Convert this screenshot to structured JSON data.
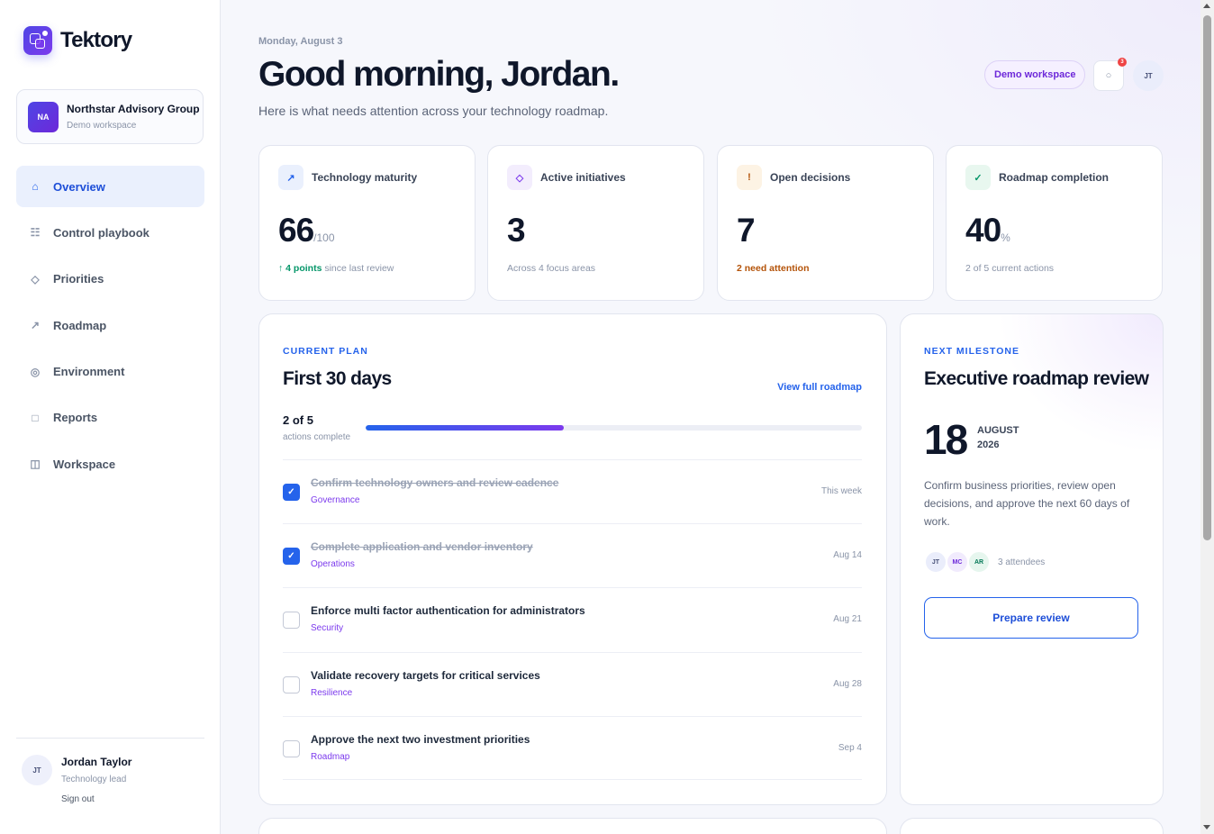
{
  "app": {
    "name": "Tektory"
  },
  "org": {
    "initials": "NA",
    "name": "Northstar Advisory Group",
    "subtitle": "Demo workspace"
  },
  "nav": [
    {
      "label": "Overview",
      "icon": "⌂",
      "icon_name": "home-icon",
      "active": true
    },
    {
      "label": "Control playbook",
      "icon": "☷",
      "icon_name": "list-icon",
      "active": false
    },
    {
      "label": "Priorities",
      "icon": "◇",
      "icon_name": "diamond-icon",
      "active": false
    },
    {
      "label": "Roadmap",
      "icon": "↗",
      "icon_name": "trend-arrow-icon",
      "active": false
    },
    {
      "label": "Environment",
      "icon": "◎",
      "icon_name": "target-icon",
      "active": false
    },
    {
      "label": "Reports",
      "icon": "□",
      "icon_name": "document-icon",
      "active": false
    },
    {
      "label": "Workspace",
      "icon": "◫",
      "icon_name": "layout-icon",
      "active": false
    }
  ],
  "user": {
    "initials": "JT",
    "name": "Jordan Taylor",
    "role": "Technology lead",
    "signout": "Sign out"
  },
  "header": {
    "date": "Monday, August 3",
    "greeting": "Good morning, Jordan.",
    "subtitle": "Here is what needs attention across your technology roadmap.",
    "workspace_pill": "Demo workspace",
    "notification_count": "3",
    "avatar_initials": "JT"
  },
  "stats": [
    {
      "label": "Technology maturity",
      "icon": "↗",
      "icon_name": "trend-up-icon",
      "icon_bg": "#eaf0fd",
      "icon_color": "#2563eb",
      "value": "66",
      "unit": "/100",
      "note_strong": "↑ 4 points",
      "note": " since last review",
      "note_style": "up"
    },
    {
      "label": "Active initiatives",
      "icon": "◇",
      "icon_name": "diamond-icon",
      "icon_bg": "#f3edfd",
      "icon_color": "#7c3aed",
      "value": "3",
      "unit": "",
      "note_strong": "",
      "note": "Across 4 focus areas",
      "note_style": ""
    },
    {
      "label": "Open decisions",
      "icon": "!",
      "icon_name": "alert-icon",
      "icon_bg": "#fdf3e4",
      "icon_color": "#b45309",
      "value": "7",
      "unit": "",
      "note_strong": "2 need attention",
      "note": "",
      "note_style": "warn"
    },
    {
      "label": "Roadmap completion",
      "icon": "✓",
      "icon_name": "check-icon",
      "icon_bg": "#e8f7ef",
      "icon_color": "#059669",
      "value": "40",
      "unit": "%",
      "note_strong": "",
      "note": "2 of 5 current actions",
      "note_style": ""
    }
  ],
  "plan": {
    "eyebrow": "CURRENT PLAN",
    "title": "First 30 days",
    "view_link": "View full roadmap",
    "progress_count": "2 of 5",
    "progress_sub": "actions complete",
    "progress_fraction": 0.4,
    "tasks": [
      {
        "title": "Confirm technology owners and review cadence",
        "tag": "Governance",
        "date": "This week",
        "done": true
      },
      {
        "title": "Complete application and vendor inventory",
        "tag": "Operations",
        "date": "Aug 14",
        "done": true
      },
      {
        "title": "Enforce multi factor authentication for administrators",
        "tag": "Security",
        "date": "Aug 21",
        "done": false
      },
      {
        "title": "Validate recovery targets for critical services",
        "tag": "Resilience",
        "date": "Aug 28",
        "done": false
      },
      {
        "title": "Approve the next two investment priorities",
        "tag": "Roadmap",
        "date": "Sep 4",
        "done": false
      }
    ]
  },
  "milestone": {
    "eyebrow": "NEXT MILESTONE",
    "title": "Executive roadmap review",
    "day": "18",
    "month": "AUGUST",
    "year": "2026",
    "description": "Confirm business priorities, review open decisions, and approve the next 60 days of work.",
    "attendees": [
      {
        "initials": "JT",
        "bg": "#eaedfb",
        "color": "#475077"
      },
      {
        "initials": "MC",
        "bg": "#f1ebfd",
        "color": "#6d28d9"
      },
      {
        "initials": "AR",
        "bg": "#e6f6ee",
        "color": "#047857"
      }
    ],
    "attendee_count": "3 attendees",
    "button": "Prepare review"
  },
  "colors": {
    "accent": "#2563eb",
    "brand": "#4f46e5",
    "violet": "#7c3aed"
  }
}
